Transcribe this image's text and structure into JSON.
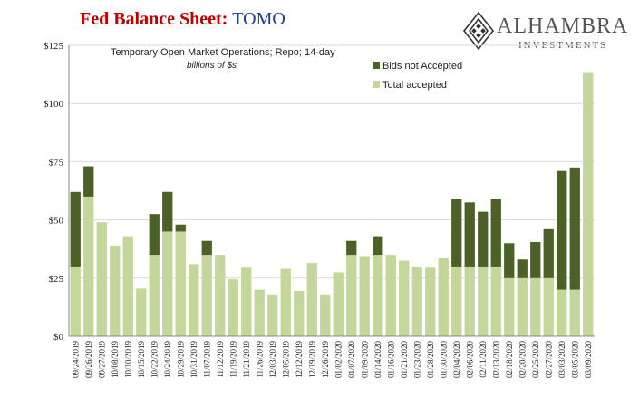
{
  "header": {
    "title_main": "Fed Balance Sheet",
    "title_sep": ": ",
    "title_sub": "TOMO",
    "logo_name": "ALHAMBRA",
    "logo_sub": "INVESTMENTS"
  },
  "colors": {
    "not_accepted": "#4b6127",
    "accepted": "#c4d79b",
    "title_red": "#c00000",
    "title_blue": "#1f3e8c"
  },
  "chart_data": {
    "type": "bar",
    "stacked": true,
    "subtitle": "Temporary Open Market Operations; Repo; 14-day",
    "units": "billions of $s",
    "ylim": [
      0,
      125
    ],
    "yticks": [
      "$0",
      "$25",
      "$50",
      "$75",
      "$100",
      "$125"
    ],
    "ytick_values": [
      0,
      25,
      50,
      75,
      100,
      125
    ],
    "legend_position": "top-right",
    "categories": [
      "09/24/2019",
      "09/26/2019",
      "09/27/2019",
      "10/08/2019",
      "10/10/2019",
      "10/15/2019",
      "10/22/2019",
      "10/24/2019",
      "10/29/2019",
      "10/31/2019",
      "11/07/2019",
      "11/12/2019",
      "11/19/2019",
      "11/21/2019",
      "11/26/2019",
      "12/03/2019",
      "12/05/2019",
      "12/12/2019",
      "12/19/2019",
      "12/26/2019",
      "01/02/2020",
      "01/07/2020",
      "01/09/2020",
      "01/14/2020",
      "01/16/2020",
      "01/21/2020",
      "01/23/2020",
      "01/28/2020",
      "01/30/2020",
      "02/04/2020",
      "02/06/2020",
      "02/11/2020",
      "02/13/2020",
      "02/18/2020",
      "02/20/2020",
      "02/25/2020",
      "02/27/2020",
      "03/03/2020",
      "03/05/2020",
      "03/09/2020"
    ],
    "xtick_labels": [
      "09/24/2019",
      "09/26/2019",
      "09/27/2019",
      "10/08/2019",
      "10/10/2019",
      "10/15/2019",
      "10/22/2019",
      "10/24/2019",
      "10/29/2019",
      "10/31/2019",
      "11/07/2019",
      "11/12/2019",
      "11/19/2019",
      "11/21/2019",
      "11/26/2019",
      "12/03/2019",
      "12/05/2019",
      "12/12/2019",
      "12/19/2019",
      "12/26/2019",
      "01/02/2020",
      "01/07/2020",
      "01/09/2020",
      "01/14/2020",
      "01/16/2020",
      "01/21/2020",
      "01/23/2020",
      "01/28/2020",
      "01/30/2020",
      "02/04/2020",
      "02/06/2020",
      "02/11/2020",
      "02/13/2020",
      "02/18/2020",
      "02/20/2020",
      "02/25/2020",
      "02/27/2020",
      "03/03/2020",
      "03/05/2020",
      "03/09/2020"
    ],
    "series": [
      {
        "name": "Total accepted",
        "values": [
          30,
          60,
          49,
          39,
          43,
          20.5,
          35,
          45,
          45,
          31,
          35,
          35,
          24.5,
          29.5,
          20,
          18,
          29,
          19.5,
          31.5,
          18,
          27.5,
          35,
          34.5,
          35,
          35,
          32.5,
          30,
          29.5,
          33.5,
          30,
          30,
          30,
          30,
          25,
          25,
          25,
          25,
          20,
          20,
          113.5
        ]
      },
      {
        "name": "Bids not Accepted",
        "values": [
          32,
          13,
          0,
          0,
          0,
          0,
          17.5,
          17,
          3,
          0,
          6,
          0,
          0,
          0,
          0,
          0,
          0,
          0,
          0,
          0,
          0,
          6,
          0,
          8,
          0,
          0,
          0,
          0,
          0,
          29,
          27.5,
          23.5,
          29,
          15,
          8,
          15.5,
          21,
          51,
          52.5,
          0
        ]
      }
    ]
  }
}
